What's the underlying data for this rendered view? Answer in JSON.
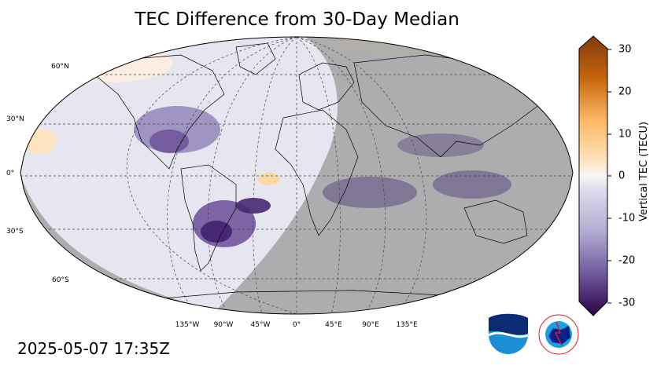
{
  "title": "TEC Difference from 30-Day Median",
  "timestamp": "2025-05-07 17:35Z",
  "map": {
    "projection": "Robinson",
    "lat_ticks": [
      "60°N",
      "30°N",
      "0°",
      "30°S",
      "60°S"
    ],
    "lon_ticks": [
      "135°W",
      "90°W",
      "45°W",
      "0°",
      "45°E",
      "90°E",
      "135°E"
    ],
    "night_side": "east"
  },
  "colorbar": {
    "label": "Vertical TEC (TECU)",
    "ticks": [
      "30",
      "20",
      "10",
      "0",
      "-10",
      "-20",
      "-30"
    ],
    "range": [
      -30,
      30
    ],
    "colors": {
      "max": "#7f3b08",
      "mid": "#f7f7f7",
      "min": "#2d004b"
    }
  },
  "logos": [
    {
      "icon": "noaa-logo",
      "text": "NOAA"
    },
    {
      "icon": "nws-logo",
      "text": "NATIONAL WEATHER SERVICE"
    }
  ]
}
